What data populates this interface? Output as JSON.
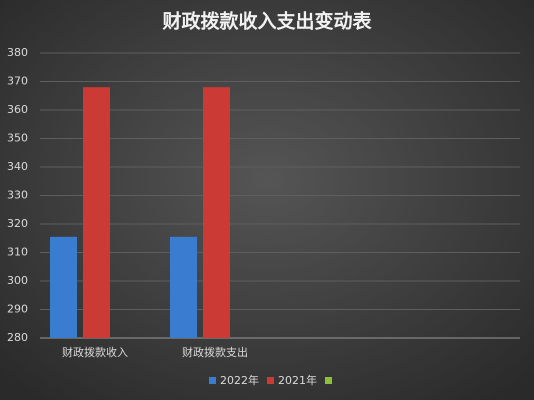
{
  "chart_data": {
    "type": "bar",
    "title": "财政拨款收入支出变动表",
    "categories": [
      "财政拨款收入",
      "财政拨款支出",
      null,
      null
    ],
    "series": [
      {
        "name": "2022年",
        "color": "#3a7ccf",
        "values": [
          315.5,
          315.5,
          null,
          null
        ]
      },
      {
        "name": "2021年",
        "color": "#cc3a36",
        "values": [
          368,
          368,
          null,
          null
        ]
      },
      {
        "color": "#8fbf3a",
        "values": [
          null,
          null,
          null,
          null
        ]
      }
    ],
    "ylim": [
      280,
      380
    ],
    "yticks": [
      280,
      290,
      300,
      310,
      320,
      330,
      340,
      350,
      360,
      370,
      380
    ],
    "grid": true
  }
}
